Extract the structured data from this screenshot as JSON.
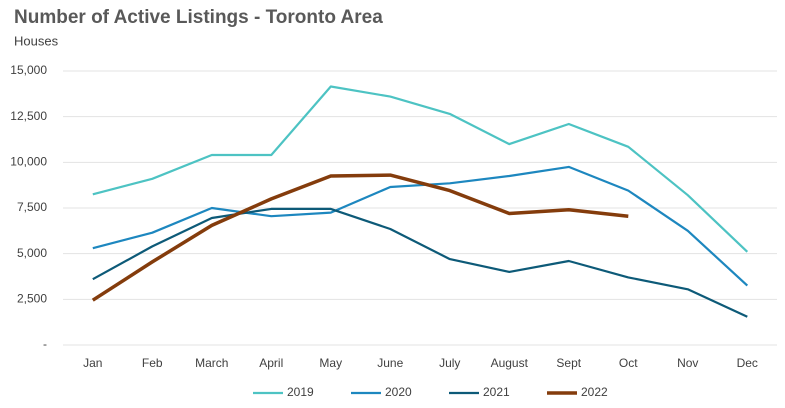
{
  "chart_data": {
    "type": "line",
    "title": "Number of Active Listings - Toronto Area",
    "subtitle": "Houses",
    "categories": [
      "Jan",
      "Feb",
      "March",
      "April",
      "May",
      "June",
      "July",
      "August",
      "Sept",
      "Oct",
      "Nov",
      "Dec"
    ],
    "series": [
      {
        "name": "2019",
        "color": "#4dc3c3",
        "values": [
          8250,
          9100,
          10400,
          10400,
          14150,
          13600,
          12650,
          11000,
          12100,
          10850,
          8200,
          5100
        ]
      },
      {
        "name": "2020",
        "color": "#1d87bf",
        "values": [
          5300,
          6150,
          7500,
          7050,
          7250,
          8650,
          8850,
          9250,
          9750,
          8450,
          6250,
          3250
        ]
      },
      {
        "name": "2021",
        "color": "#0d5a78",
        "values": [
          3600,
          5400,
          6950,
          7450,
          7450,
          6350,
          4700,
          4000,
          4600,
          3700,
          3050,
          1550
        ]
      },
      {
        "name": "2022",
        "color": "#843c0c",
        "values": [
          2450,
          4550,
          6550,
          8000,
          9250,
          9300,
          8450,
          7200,
          7400,
          7050,
          null,
          null
        ]
      }
    ],
    "ylim": [
      0,
      15000
    ],
    "yticks": [
      {
        "value": 0,
        "label": "-"
      },
      {
        "value": 2500,
        "label": "2,500"
      },
      {
        "value": 5000,
        "label": "5,000"
      },
      {
        "value": 7500,
        "label": "7,500"
      },
      {
        "value": 10000,
        "label": "10,000"
      },
      {
        "value": 12500,
        "label": "12,500"
      },
      {
        "value": 15000,
        "label": "15,000"
      }
    ],
    "grid": true,
    "legend": "bottom"
  }
}
